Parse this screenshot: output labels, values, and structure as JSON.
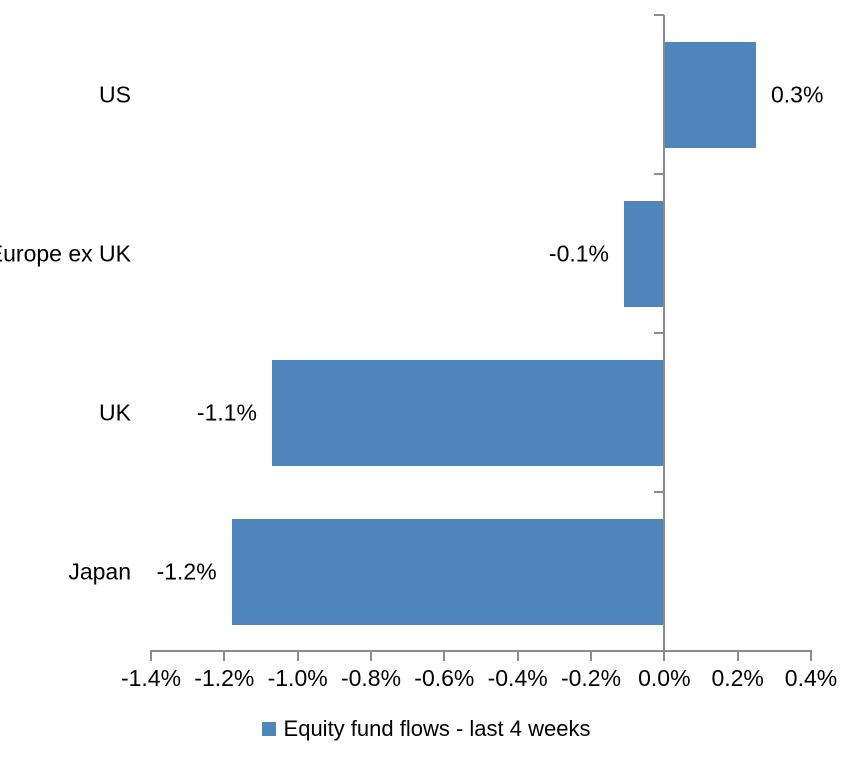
{
  "chart_data": {
    "type": "bar",
    "orientation": "horizontal",
    "title": "",
    "categories": [
      "US",
      "Europe ex UK",
      "UK",
      "Japan"
    ],
    "series": [
      {
        "name": "Equity fund flows - last 4 weeks",
        "values": [
          0.25,
          -0.11,
          -1.07,
          -1.18
        ]
      }
    ],
    "data_labels": [
      "0.3%",
      "-0.1%",
      "-1.1%",
      "-1.2%"
    ],
    "xlim": [
      -1.4,
      0.4
    ],
    "x_tick_values": [
      -1.4,
      -1.2,
      -1.0,
      -0.8,
      -0.6,
      -0.4,
      -0.2,
      0.0,
      0.2,
      0.4
    ],
    "x_ticks": [
      "-1.4%",
      "-1.2%",
      "-1.0%",
      "-0.8%",
      "-0.6%",
      "-0.4%",
      "-0.2%",
      "0.0%",
      "0.2%",
      "0.4%"
    ],
    "xlabel": "",
    "ylabel": "",
    "grid": false,
    "legend_position": "bottom",
    "legend": [
      {
        "label": "Equity fund flows - last 4 weeks",
        "color": "#4E86BC"
      }
    ],
    "bar_color": "#4E86BC",
    "axis_color": "#8C8C8C",
    "text_color": "#000000",
    "background": "#FFFFFF"
  }
}
